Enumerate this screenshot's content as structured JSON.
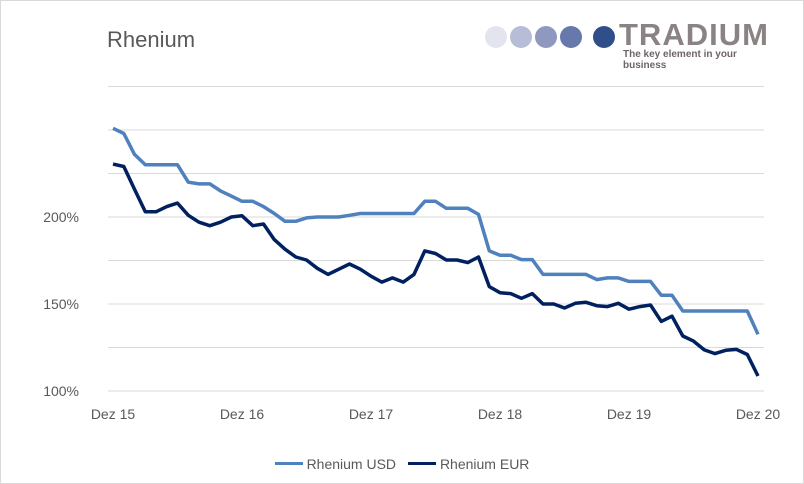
{
  "chart_data": {
    "type": "line",
    "title": "Rhenium",
    "xlabel": "",
    "ylabel": "",
    "x_tick_labels": [
      "Dez 15",
      "Dez 16",
      "Dez 17",
      "Dez 18",
      "Dez 19",
      "Dez 20"
    ],
    "y_tick_labels": [
      "100%",
      "150%",
      "200%"
    ],
    "ylim": [
      100,
      275
    ],
    "y_grid_step": 25,
    "grid": true,
    "legend": "bottom",
    "series": [
      {
        "name": "Rhenium USD",
        "color": "#4f81bd",
        "values": [
          251,
          248,
          236,
          230,
          230,
          230,
          230,
          220,
          219,
          219,
          215,
          212,
          209,
          209,
          206,
          202,
          197.5,
          197.5,
          199.5,
          200,
          200,
          200,
          201,
          202,
          202,
          202,
          202,
          202,
          202,
          209,
          209,
          205,
          205,
          205,
          201.5,
          180.5,
          178,
          178,
          175.5,
          175.5,
          167,
          167,
          167,
          167,
          167,
          164,
          165,
          165,
          163,
          163,
          163,
          155,
          155,
          146,
          146,
          146,
          146,
          146,
          146,
          146,
          132.6
        ]
      },
      {
        "name": "Rhenium EUR",
        "color": "#002060",
        "values": [
          230.4,
          229,
          216,
          203,
          203,
          206,
          208,
          201,
          197,
          195,
          197,
          200,
          200.7,
          195,
          196,
          187,
          181.5,
          177,
          175.3,
          170.5,
          167,
          170,
          173,
          170,
          166,
          162.6,
          165,
          162.6,
          167,
          180.5,
          179,
          175.3,
          175.3,
          173.8,
          177,
          160,
          156.5,
          156,
          153.3,
          156,
          150,
          150,
          147.7,
          150.4,
          151,
          149,
          148.5,
          150.4,
          147,
          148.5,
          149.4,
          140,
          143,
          131.6,
          128.7,
          123.6,
          121.5,
          123.4,
          123.9,
          121,
          108.6
        ]
      }
    ]
  },
  "logo": {
    "brand": "TRADIUM",
    "tagline": "The key element in your business",
    "dot_colors": [
      "#e3e5ee",
      "#b7bdd6",
      "#8f99c0",
      "#6778aa",
      "#2f4e8a"
    ]
  }
}
